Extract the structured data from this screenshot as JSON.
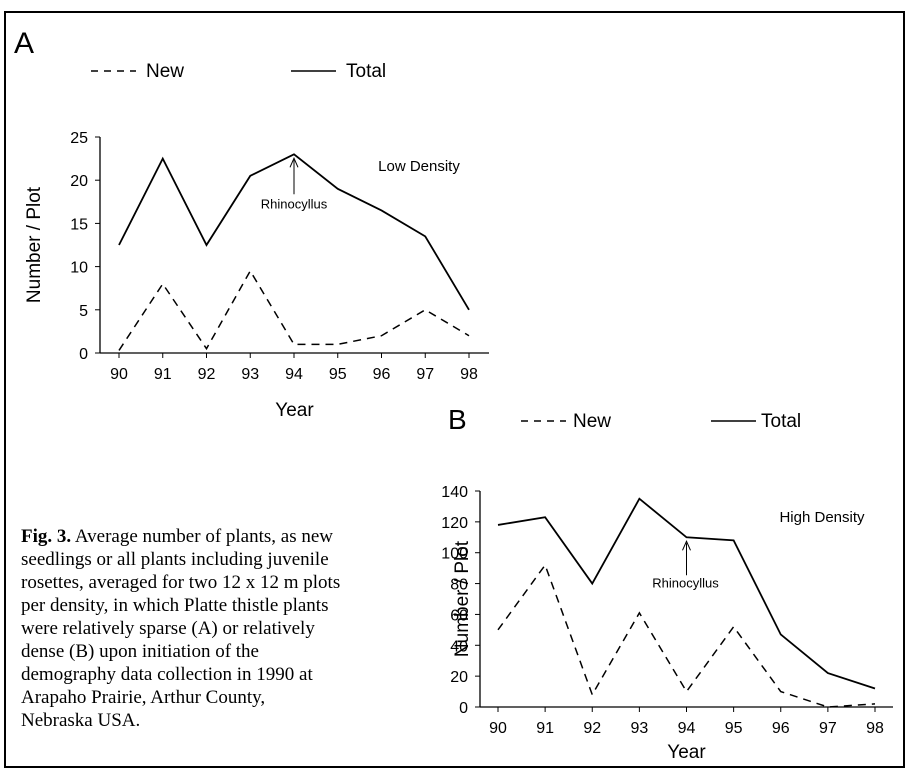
{
  "caption": {
    "label": "Fig. 3.",
    "text": "Average number of plants, as new seedlings or all plants including juvenile rosettes, averaged for two 12 x 12 m plots per density, in which Platte thistle plants were relatively sparse (A) or relatively dense (B) upon initiation of the demography data collection in 1990 at Arapaho Prairie, Arthur County, Nebraska USA."
  },
  "chart_data": [
    {
      "type": "line",
      "panel_label": "A",
      "title": "Low Density",
      "xlabel": "Year",
      "ylabel": "Number / Plot",
      "categories": [
        "90",
        "91",
        "92",
        "93",
        "94",
        "95",
        "96",
        "97",
        "98"
      ],
      "ylim": [
        0,
        25
      ],
      "yticks": [
        0,
        5,
        10,
        15,
        20,
        25
      ],
      "legend": {
        "placement": "top-left",
        "entries": [
          "New",
          "Total"
        ]
      },
      "series": [
        {
          "name": "New",
          "style": "dashed",
          "values": [
            0.3,
            8,
            0.5,
            9.5,
            1,
            1,
            2,
            5,
            2
          ]
        },
        {
          "name": "Total",
          "style": "solid",
          "values": [
            12.5,
            22.5,
            12.5,
            20.5,
            23,
            19,
            16.5,
            13.5,
            5
          ]
        }
      ],
      "annotation": {
        "text": "Rhinocyllus",
        "x": "94"
      }
    },
    {
      "type": "line",
      "panel_label": "B",
      "title": "High Density",
      "xlabel": "Year",
      "ylabel": "Number / Plot",
      "categories": [
        "90",
        "91",
        "92",
        "93",
        "94",
        "95",
        "96",
        "97",
        "98"
      ],
      "ylim": [
        0,
        140
      ],
      "yticks": [
        0,
        20,
        40,
        60,
        80,
        100,
        120,
        140
      ],
      "legend": {
        "placement": "top",
        "entries": [
          "New",
          "Total"
        ]
      },
      "series": [
        {
          "name": "New",
          "style": "dashed",
          "values": [
            50,
            92,
            8,
            61,
            10,
            52,
            10,
            0,
            2
          ]
        },
        {
          "name": "Total",
          "style": "solid",
          "values": [
            118,
            123,
            80,
            135,
            110,
            108,
            47,
            22,
            12
          ]
        }
      ],
      "annotation": {
        "text": "Rhinocyllus",
        "x": "94"
      }
    }
  ]
}
